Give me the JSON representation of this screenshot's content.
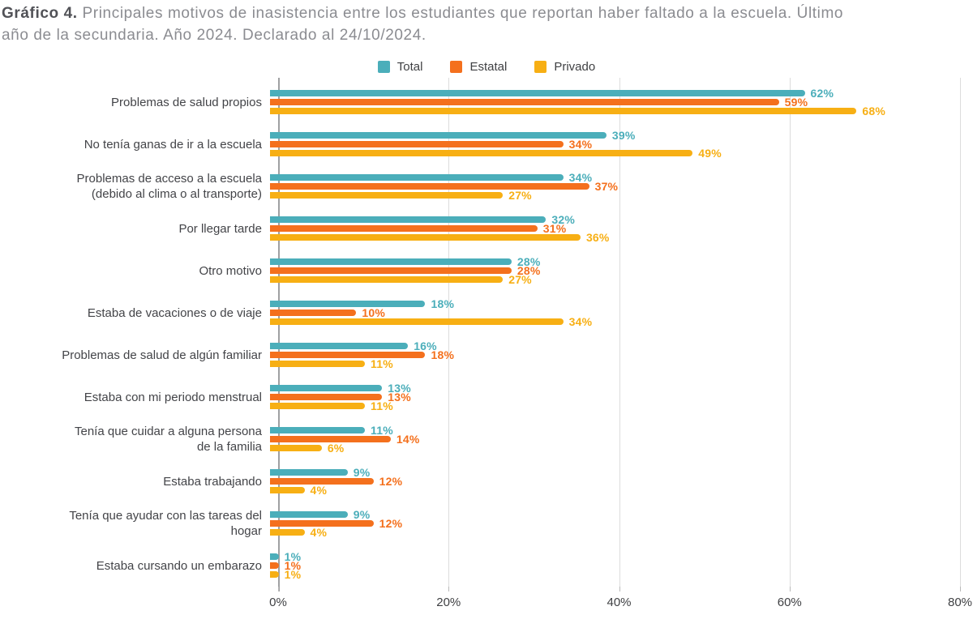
{
  "title": {
    "prefix": "Gráfico 4.",
    "line1_rest": " Principales motivos de inasistencia entre los estudiantes que reportan haber faltado a la escuela. Último",
    "line2": "año de la secundaria. Año 2024. Declarado al 24/10/2024."
  },
  "colors": {
    "total": "#4baeba",
    "estatal": "#f4701d",
    "privado": "#f7af14",
    "grid": "#dcdcdc",
    "axis": "#9fa0a2",
    "text": "#434448"
  },
  "chart_data": {
    "type": "bar",
    "orientation": "horizontal",
    "title": "Gráfico 4. Principales motivos de inasistencia entre los estudiantes que reportan haber faltado a la escuela. Último año de la secundaria. Año 2024. Declarado al 24/10/2024.",
    "categories": [
      "Problemas de salud propios",
      "No tenía ganas de ir a la escuela",
      "Problemas de acceso a la escuela (debido al clima o al transporte)",
      "Por llegar tarde",
      "Otro motivo",
      "Estaba de vacaciones o de viaje",
      "Problemas de salud de algún familiar",
      "Estaba con mi periodo menstrual",
      "Tenía que cuidar a alguna persona de la familia",
      "Estaba trabajando",
      "Tenía que ayudar con las tareas del hogar",
      "Estaba cursando un embarazo"
    ],
    "series": [
      {
        "name": "Total",
        "color": "#4baeba",
        "values": [
          62,
          39,
          34,
          32,
          28,
          18,
          16,
          13,
          11,
          9,
          9,
          1
        ]
      },
      {
        "name": "Estatal",
        "color": "#f4701d",
        "values": [
          59,
          34,
          37,
          31,
          28,
          10,
          18,
          13,
          14,
          12,
          12,
          1
        ]
      },
      {
        "name": "Privado",
        "color": "#f7af14",
        "values": [
          68,
          49,
          27,
          36,
          27,
          34,
          11,
          11,
          6,
          4,
          4,
          1
        ]
      }
    ],
    "value_suffix": "%",
    "x_ticks": [
      "0%",
      "20%",
      "40%",
      "60%",
      "80%"
    ],
    "xlim": [
      0,
      80
    ],
    "grid": true,
    "legend_position": "top"
  }
}
